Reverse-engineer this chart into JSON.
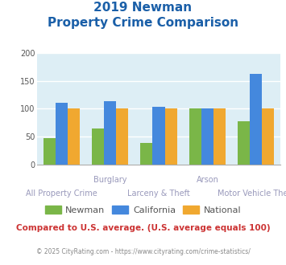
{
  "title_line1": "2019 Newman",
  "title_line2": "Property Crime Comparison",
  "categories": [
    "All Property Crime",
    "Burglary",
    "Larceny & Theft",
    "Arson",
    "Motor Vehicle Theft"
  ],
  "top_labels": [
    "",
    "Burglary",
    "",
    "Arson",
    ""
  ],
  "bottom_labels": [
    "All Property Crime",
    "",
    "Larceny & Theft",
    "",
    "Motor Vehicle Theft"
  ],
  "newman": [
    47,
    65,
    38,
    101,
    77
  ],
  "california": [
    110,
    113,
    103,
    101,
    163
  ],
  "national": [
    100,
    100,
    100,
    100,
    100
  ],
  "newman_color": "#7ab648",
  "california_color": "#4488dd",
  "national_color": "#f0a830",
  "bg_color": "#ddeef5",
  "ylim": [
    0,
    200
  ],
  "yticks": [
    0,
    50,
    100,
    150,
    200
  ],
  "bar_width": 0.25,
  "title_color": "#1a5fa8",
  "xlabel_color": "#9999bb",
  "footer_text": "Compared to U.S. average. (U.S. average equals 100)",
  "footer_color": "#cc3333",
  "credit_text": "© 2025 CityRating.com - https://www.cityrating.com/crime-statistics/",
  "credit_color": "#888888",
  "grid_color": "#ffffff",
  "legend_labels": [
    "Newman",
    "California",
    "National"
  ],
  "legend_text_color": "#555555"
}
